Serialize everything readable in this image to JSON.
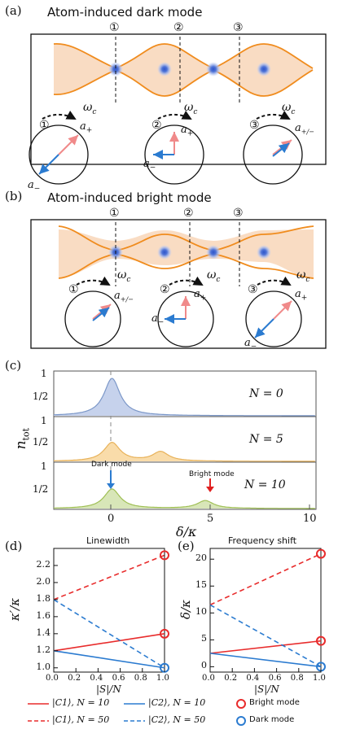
{
  "panel_a": {
    "label": "(a)",
    "title": "Atom-induced dark mode",
    "positions": [
      "①",
      "②",
      "③"
    ],
    "circles": [
      {
        "num": "①",
        "omega": "ω",
        "omega_sub": "c",
        "plus": "a",
        "plus_sub": "+",
        "minus": "a",
        "minus_sub": "−"
      },
      {
        "num": "②",
        "omega": "ω",
        "omega_sub": "c",
        "plus": "a",
        "plus_sub": "+",
        "minus": "a",
        "minus_sub": "−"
      },
      {
        "num": "③",
        "omega": "ω",
        "omega_sub": "c",
        "pm": "a",
        "pm_sub": "+/−"
      }
    ]
  },
  "panel_b": {
    "label": "(b)",
    "title": "Atom-induced bright mode",
    "positions": [
      "①",
      "②",
      "③"
    ],
    "circles": [
      {
        "num": "①",
        "omega": "ω",
        "omega_sub": "c",
        "pm": "a",
        "pm_sub": "+/−"
      },
      {
        "num": "②",
        "omega": "ω",
        "omega_sub": "c",
        "plus": "a",
        "plus_sub": "+",
        "minus": "a",
        "minus_sub": "−"
      },
      {
        "num": "③",
        "omega": "ω",
        "omega_sub": "c",
        "plus": "a",
        "plus_sub": "+",
        "minus": "a",
        "minus_sub": "−"
      }
    ]
  },
  "panel_c": {
    "label": "(c)",
    "ylabel": "n",
    "ylabel_sub": "tot",
    "xlabel": "δ/κ",
    "yticks": [
      "1",
      "1/2"
    ],
    "xticks": [
      "0",
      "5",
      "10"
    ],
    "rows": [
      {
        "label": "N = 0"
      },
      {
        "label": "N = 5"
      },
      {
        "label": "N = 10"
      }
    ],
    "annotations": {
      "dark": "Dark mode",
      "bright": "Bright mode"
    },
    "colors": {
      "blue": "#7b97c8",
      "orange": "#e8b25a",
      "green": "#9fbf55",
      "red": "#e02020",
      "arrowblue": "#2b7bd0"
    }
  },
  "panel_d": {
    "label": "(d)",
    "title": "Linewidth",
    "ylabel": "κ′/κ",
    "xlabel": "|S|/N",
    "yticks": [
      "1.0",
      "1.2",
      "1.4",
      "1.6",
      "1.8",
      "2.0",
      "2.2"
    ],
    "xticks": [
      "0.0",
      "0.2",
      "0.4",
      "0.6",
      "0.8",
      "1.0"
    ]
  },
  "panel_e": {
    "label": "(e)",
    "title": "Frequency shift",
    "ylabel": "δ/κ",
    "xlabel": "|S|/N",
    "yticks": [
      "0",
      "5",
      "10",
      "15",
      "20"
    ],
    "xticks": [
      "0.0",
      "0.2",
      "0.4",
      "0.6",
      "0.8",
      "1.0"
    ]
  },
  "legend": {
    "c1_10": "|C1⟩, N = 10",
    "c1_50": "|C1⟩, N = 50",
    "c2_10": "|C2⟩, N = 10",
    "c2_50": "|C2⟩, N = 50",
    "bright": "Bright mode",
    "dark": "Dark mode"
  },
  "chart_data": [
    {
      "type": "area",
      "xlabel": "δ/κ",
      "ylabel": "n_tot",
      "xlim": [
        -3,
        10.5
      ],
      "ylim": [
        0,
        1
      ],
      "series": [
        {
          "name": "N = 0",
          "peaks": [
            {
              "x": 0,
              "y": 1.0
            }
          ]
        },
        {
          "name": "N = 5",
          "peaks": [
            {
              "x": 0,
              "y": 0.5
            },
            {
              "x": 2.5,
              "y": 0.25
            }
          ]
        },
        {
          "name": "N = 10",
          "peaks": [
            {
              "x": 0,
              "y": 0.5
            },
            {
              "x": 4.8,
              "y": 0.2
            }
          ]
        }
      ]
    },
    {
      "type": "line",
      "title": "Linewidth",
      "xlabel": "|S|/N",
      "ylabel": "κ′/κ",
      "xlim": [
        0,
        1
      ],
      "ylim": [
        0.95,
        2.4
      ],
      "series": [
        {
          "name": "|C1⟩, N = 10",
          "x": [
            0,
            1
          ],
          "y": [
            1.2,
            1.4
          ]
        },
        {
          "name": "|C1⟩, N = 50",
          "x": [
            0,
            1
          ],
          "y": [
            1.8,
            2.32
          ]
        },
        {
          "name": "|C2⟩, N = 10",
          "x": [
            0,
            1
          ],
          "y": [
            1.2,
            1.0
          ]
        },
        {
          "name": "|C2⟩, N = 50",
          "x": [
            0,
            1
          ],
          "y": [
            1.8,
            1.0
          ]
        }
      ],
      "markers": [
        {
          "name": "Bright mode",
          "points": [
            [
              1,
              1.4
            ],
            [
              1,
              2.32
            ]
          ]
        },
        {
          "name": "Dark mode",
          "points": [
            [
              1,
              1.0
            ]
          ]
        }
      ]
    },
    {
      "type": "line",
      "title": "Frequency shift",
      "xlabel": "|S|/N",
      "ylabel": "δ/κ",
      "xlim": [
        0,
        1
      ],
      "ylim": [
        -1,
        22
      ],
      "series": [
        {
          "name": "|C1⟩, N = 10",
          "x": [
            0,
            1
          ],
          "y": [
            2.5,
            4.8
          ]
        },
        {
          "name": "|C1⟩, N = 50",
          "x": [
            0,
            1
          ],
          "y": [
            11.5,
            21
          ]
        },
        {
          "name": "|C2⟩, N = 10",
          "x": [
            0,
            1
          ],
          "y": [
            2.5,
            0
          ]
        },
        {
          "name": "|C2⟩, N = 50",
          "x": [
            0,
            1
          ],
          "y": [
            11.5,
            0
          ]
        }
      ],
      "markers": [
        {
          "name": "Bright mode",
          "points": [
            [
              1,
              4.8
            ],
            [
              1,
              21
            ]
          ]
        },
        {
          "name": "Dark mode",
          "points": [
            [
              1,
              0
            ]
          ]
        }
      ]
    }
  ]
}
